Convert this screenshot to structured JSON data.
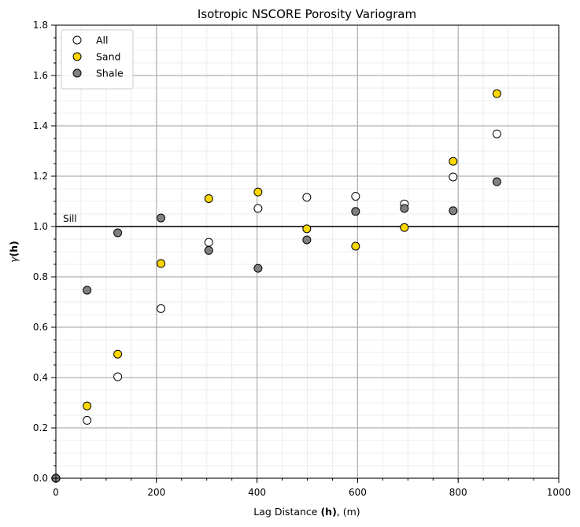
{
  "chart_data": {
    "type": "scatter",
    "title": "Isotropic NSCORE Porosity Variogram",
    "xlabel": {
      "prefix": "Lag Distance ",
      "bold": "(h)",
      "suffix": ", (m)"
    },
    "ylabel": {
      "gamma": "γ",
      "bold": "(h)"
    },
    "xlim": [
      0,
      1000
    ],
    "ylim": [
      0,
      1.8
    ],
    "x_ticks": [
      0,
      200,
      400,
      600,
      800,
      1000
    ],
    "y_ticks": [
      0.0,
      0.2,
      0.4,
      0.6,
      0.8,
      1.0,
      1.2,
      1.4,
      1.6,
      1.8
    ],
    "x_tick_labels": [
      "0",
      "200",
      "400",
      "600",
      "800",
      "1000"
    ],
    "y_tick_labels": [
      "0.0",
      "0.2",
      "0.4",
      "0.6",
      "0.8",
      "1.0",
      "1.2",
      "1.4",
      "1.6",
      "1.8"
    ],
    "grid": true,
    "minor_grid": true,
    "legend_position": "top-left",
    "sill": {
      "label": "Sill",
      "value": 1.0,
      "color": "#000000"
    },
    "series": [
      {
        "name": "All",
        "color": "#ffffff",
        "edge": "#000000",
        "points": [
          [
            0,
            0.0
          ],
          [
            62,
            0.23
          ],
          [
            123,
            0.403
          ],
          [
            209,
            0.674
          ],
          [
            304,
            0.937
          ],
          [
            402,
            1.072
          ],
          [
            499,
            1.116
          ],
          [
            596,
            1.12
          ],
          [
            693,
            1.09
          ],
          [
            790,
            1.197
          ],
          [
            877,
            1.368
          ]
        ]
      },
      {
        "name": "Sand",
        "color": "#ffd700",
        "edge": "#000000",
        "points": [
          [
            0,
            0.0
          ],
          [
            62,
            0.287
          ],
          [
            123,
            0.493
          ],
          [
            209,
            0.853
          ],
          [
            304,
            1.111
          ],
          [
            402,
            1.137
          ],
          [
            499,
            0.991
          ],
          [
            596,
            0.922
          ],
          [
            693,
            0.996
          ],
          [
            790,
            1.259
          ],
          [
            877,
            1.528
          ]
        ]
      },
      {
        "name": "Shale",
        "color": "#808080",
        "edge": "#000000",
        "points": [
          [
            0,
            0.0
          ],
          [
            62,
            0.747
          ],
          [
            123,
            0.975
          ],
          [
            209,
            1.034
          ],
          [
            304,
            0.905
          ],
          [
            402,
            0.834
          ],
          [
            499,
            0.947
          ],
          [
            596,
            1.06
          ],
          [
            693,
            1.072
          ],
          [
            790,
            1.063
          ],
          [
            877,
            1.178
          ]
        ]
      }
    ]
  }
}
